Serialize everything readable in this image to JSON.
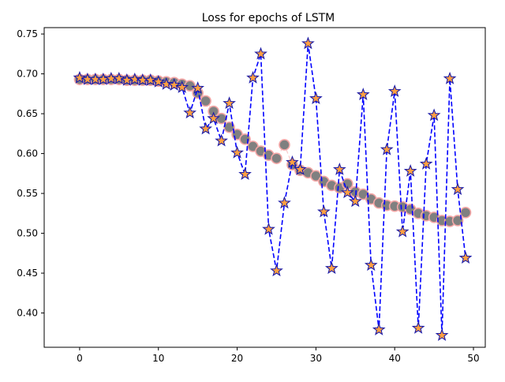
{
  "chart_data": {
    "type": "line",
    "title": "Loss for epochs of LSTM",
    "xlabel": "",
    "ylabel": "",
    "xlim": [
      -4.5,
      51.5
    ],
    "ylim": [
      0.357,
      0.758
    ],
    "xticks": [
      0,
      10,
      20,
      30,
      40,
      50
    ],
    "yticks": [
      0.4,
      0.45,
      0.5,
      0.55,
      0.6,
      0.65,
      0.7,
      0.75
    ],
    "grid": false,
    "legend": "none",
    "x": [
      0,
      1,
      2,
      3,
      4,
      5,
      6,
      7,
      8,
      9,
      10,
      11,
      12,
      13,
      14,
      15,
      16,
      17,
      18,
      19,
      20,
      21,
      22,
      23,
      24,
      25,
      26,
      27,
      28,
      29,
      30,
      31,
      32,
      33,
      34,
      35,
      36,
      37,
      38,
      39,
      40,
      41,
      42,
      43,
      44,
      45,
      46,
      47,
      48,
      49
    ],
    "series": [
      {
        "values": [
          0.693,
          0.693,
          0.693,
          0.693,
          0.693,
          0.693,
          0.692,
          0.692,
          0.692,
          0.692,
          0.691,
          0.69,
          0.689,
          0.687,
          0.685,
          0.676,
          0.666,
          0.653,
          0.644,
          0.633,
          0.624,
          0.618,
          0.609,
          0.603,
          0.598,
          0.594,
          0.611,
          0.586,
          0.579,
          0.576,
          0.572,
          0.565,
          0.56,
          0.557,
          0.562,
          0.552,
          0.549,
          0.543,
          0.538,
          0.535,
          0.534,
          0.533,
          0.53,
          0.525,
          0.522,
          0.52,
          0.516,
          0.515,
          0.516,
          0.526
        ],
        "style": "circles",
        "color": "#808080",
        "edge": "#f4a6a6"
      },
      {
        "values": [
          0.695,
          0.693,
          0.693,
          0.693,
          0.694,
          0.694,
          0.692,
          0.693,
          0.692,
          0.692,
          0.69,
          0.687,
          0.686,
          0.683,
          0.651,
          0.682,
          0.631,
          0.644,
          0.616,
          0.663,
          0.601,
          0.574,
          0.695,
          0.725,
          0.505,
          0.453,
          0.538,
          0.589,
          0.58,
          0.738,
          0.669,
          0.527,
          0.456,
          0.58,
          0.551,
          0.54,
          0.674,
          0.46,
          0.379,
          0.605,
          0.678,
          0.502,
          0.578,
          0.381,
          0.587,
          0.648,
          0.372,
          0.694,
          0.555,
          0.469
        ],
        "style": "dashed-stars",
        "color": "#0000ff",
        "marker_fill": "#ffa040",
        "marker_edge": "#1a1aa8"
      }
    ]
  }
}
